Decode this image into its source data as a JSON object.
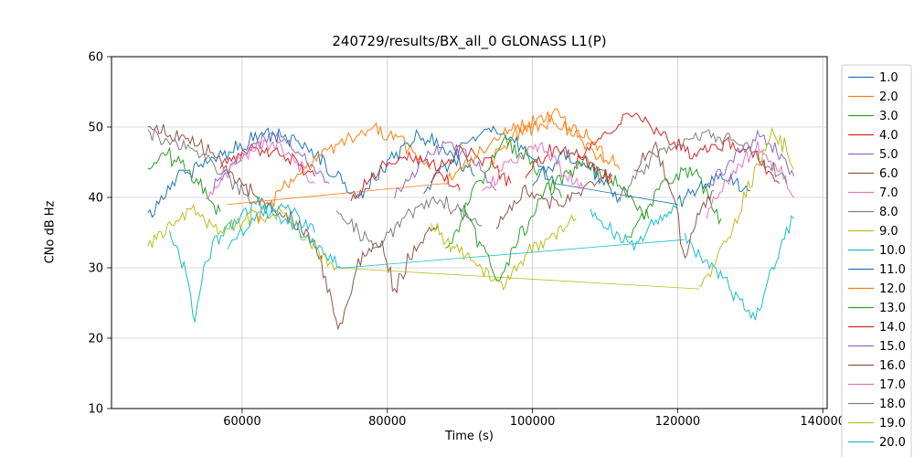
{
  "chart_data": {
    "type": "line",
    "title": "240729/results/BX_all_0 GLONASS L1(P)",
    "xlabel": "Time (s)",
    "ylabel": "CNo dB Hz",
    "xlim": [
      42000,
      140600
    ],
    "ylim": [
      10,
      60
    ],
    "xticks": [
      60000,
      80000,
      100000,
      120000,
      140000
    ],
    "yticks": [
      10,
      20,
      30,
      40,
      50,
      60
    ],
    "grid": true,
    "grid_color": "#cccccc",
    "spine_color": "#000000",
    "legend_position": "right-outside",
    "legend_border_color": "#cccccc",
    "series": [
      {
        "name": "1.0",
        "color": "#1f77b4",
        "noise": 1.3,
        "segments": [
          [
            [
              47000,
              37
            ],
            [
              51000,
              43
            ],
            [
              57000,
              46
            ],
            [
              63000,
              49
            ],
            [
              68000,
              48
            ],
            [
              72000,
              44
            ],
            [
              76000,
              40
            ]
          ],
          [
            [
              85000,
              41
            ],
            [
              90000,
              47
            ],
            [
              94000,
              50
            ],
            [
              99000,
              47
            ],
            [
              103000,
              42
            ]
          ],
          [
            [
              103000,
              42
            ],
            [
              120000,
              39
            ]
          ],
          [
            [
              120000,
              39
            ],
            [
              125000,
              43
            ],
            [
              130000,
              41
            ]
          ]
        ]
      },
      {
        "name": "2.0",
        "color": "#ff7f0e",
        "noise": 1.4,
        "segments": [
          [
            [
              62000,
              37
            ],
            [
              67000,
              43
            ],
            [
              72000,
              47
            ],
            [
              77000,
              50
            ],
            [
              82000,
              48
            ],
            [
              86000,
              44
            ]
          ],
          [
            [
              94000,
              45
            ],
            [
              98000,
              49
            ],
            [
              102000,
              51
            ],
            [
              106000,
              49
            ],
            [
              110000,
              45
            ]
          ]
        ]
      },
      {
        "name": "3.0",
        "color": "#2ca02c",
        "noise": 1.4,
        "segments": [
          [
            [
              47000,
              44
            ],
            [
              50000,
              46
            ],
            [
              54000,
              42
            ],
            [
              57000,
              38
            ]
          ],
          [
            [
              88000,
              32
            ],
            [
              92000,
              41
            ],
            [
              96000,
              48
            ],
            [
              100000,
              45
            ],
            [
              104000,
              40
            ]
          ],
          [
            [
              113000,
              34
            ],
            [
              118000,
              42
            ],
            [
              122000,
              44
            ],
            [
              126000,
              37
            ]
          ]
        ]
      },
      {
        "name": "4.0",
        "color": "#d62728",
        "noise": 1.3,
        "segments": [
          [
            [
              57000,
              44
            ],
            [
              61000,
              47
            ],
            [
              66000,
              46
            ],
            [
              70000,
              43
            ]
          ],
          [
            [
              86000,
              43
            ],
            [
              90000,
              47
            ],
            [
              94000,
              45
            ],
            [
              97000,
              42
            ]
          ],
          [
            [
              106000,
              45
            ],
            [
              110000,
              49
            ],
            [
              114000,
              52
            ],
            [
              118000,
              49
            ],
            [
              122000,
              46
            ],
            [
              127000,
              48
            ],
            [
              131000,
              46
            ],
            [
              134000,
              42
            ]
          ]
        ]
      },
      {
        "name": "5.0",
        "color": "#9467bd",
        "noise": 1.3,
        "segments": [
          [
            [
              56000,
              41
            ],
            [
              60000,
              46
            ],
            [
              64000,
              49
            ],
            [
              68000,
              46
            ],
            [
              72000,
              42
            ]
          ],
          [
            [
              124000,
              41
            ],
            [
              128000,
              46
            ],
            [
              131000,
              49
            ],
            [
              134000,
              46
            ],
            [
              136000,
              43
            ]
          ]
        ]
      },
      {
        "name": "6.0",
        "color": "#8c564b",
        "noise": 1.5,
        "segments": [
          [
            [
              47000,
              50
            ],
            [
              51000,
              49
            ],
            [
              55000,
              47
            ],
            [
              59000,
              43
            ],
            [
              63000,
              39
            ],
            [
              67000,
              37
            ],
            [
              70000,
              34
            ]
          ],
          [
            [
              70000,
              34
            ],
            [
              73500,
              21
            ],
            [
              76000,
              31
            ],
            [
              79000,
              34
            ],
            [
              81000,
              27
            ],
            [
              84000,
              33
            ],
            [
              87000,
              36
            ]
          ]
        ]
      },
      {
        "name": "7.0",
        "color": "#e377c2",
        "noise": 1.3,
        "segments": [
          [
            [
              55000,
              40
            ],
            [
              59000,
              45
            ],
            [
              63000,
              48
            ],
            [
              67000,
              46
            ],
            [
              70000,
              42
            ]
          ],
          [
            [
              124000,
              38
            ],
            [
              128000,
              44
            ],
            [
              131000,
              47
            ],
            [
              134000,
              44
            ],
            [
              136000,
              40
            ]
          ]
        ]
      },
      {
        "name": "8.0",
        "color": "#7f7f7f",
        "noise": 1.4,
        "segments": [
          [
            [
              47000,
              49
            ],
            [
              51000,
              48
            ],
            [
              55000,
              46
            ],
            [
              59000,
              42
            ],
            [
              62000,
              39
            ]
          ],
          [
            [
              112000,
              40
            ],
            [
              116000,
              45
            ],
            [
              120000,
              48
            ],
            [
              124000,
              49
            ],
            [
              128000,
              48
            ],
            [
              132000,
              45
            ],
            [
              135000,
              42
            ]
          ]
        ]
      },
      {
        "name": "9.0",
        "color": "#bcbd22",
        "noise": 1.5,
        "segments": [
          [
            [
              47000,
              33
            ],
            [
              50000,
              36
            ],
            [
              53000,
              38
            ],
            [
              57000,
              35
            ],
            [
              61000,
              37
            ],
            [
              65000,
              38
            ],
            [
              69000,
              34
            ],
            [
              73000,
              30
            ]
          ],
          [
            [
              73000,
              30
            ],
            [
              123000,
              27
            ]
          ],
          [
            [
              123000,
              27
            ],
            [
              127000,
              34
            ],
            [
              130000,
              42
            ],
            [
              133000,
              49
            ],
            [
              135000,
              47
            ],
            [
              136000,
              44
            ]
          ]
        ]
      },
      {
        "name": "10.0",
        "color": "#17becf",
        "noise": 1.5,
        "segments": [
          [
            [
              50000,
              36
            ],
            [
              52000,
              30
            ],
            [
              53500,
              23
            ],
            [
              55000,
              31
            ],
            [
              58000,
              36
            ],
            [
              62000,
              39
            ],
            [
              66000,
              37
            ],
            [
              70000,
              33
            ],
            [
              74000,
              30
            ]
          ],
          [
            [
              74000,
              30
            ],
            [
              121000,
              34
            ]
          ],
          [
            [
              121000,
              34
            ],
            [
              125000,
              30
            ],
            [
              128000,
              26
            ],
            [
              131000,
              23
            ],
            [
              133000,
              30
            ],
            [
              135000,
              35
            ],
            [
              136000,
              37
            ]
          ]
        ]
      },
      {
        "name": "11.0",
        "color": "#1f77b4",
        "noise": 1.4,
        "segments": [
          [
            [
              76000,
              40
            ],
            [
              80000,
              45
            ],
            [
              84000,
              49
            ],
            [
              88000,
              47
            ],
            [
              92000,
              43
            ]
          ],
          [
            [
              100000,
              42
            ],
            [
              104000,
              46
            ],
            [
              108000,
              44
            ],
            [
              112000,
              40
            ]
          ]
        ]
      },
      {
        "name": "12.0",
        "color": "#ff7f0e",
        "noise": 1.4,
        "segments": [
          [
            [
              58000,
              39
            ],
            [
              88000,
              42
            ]
          ],
          [
            [
              88000,
              42
            ],
            [
              93000,
              47
            ],
            [
              98000,
              50
            ],
            [
              103000,
              52
            ],
            [
              108000,
              48
            ],
            [
              112000,
              44
            ]
          ]
        ]
      },
      {
        "name": "13.0",
        "color": "#2ca02c",
        "noise": 1.4,
        "segments": [
          [
            [
              90000,
              39
            ],
            [
              93000,
              33
            ],
            [
              95500,
              28
            ],
            [
              98000,
              34
            ],
            [
              102000,
              41
            ],
            [
              107000,
              45
            ],
            [
              112000,
              42
            ],
            [
              116000,
              37
            ]
          ]
        ]
      },
      {
        "name": "14.0",
        "color": "#d62728",
        "noise": 1.3,
        "segments": [
          [
            [
              75000,
              40
            ],
            [
              79000,
              44
            ],
            [
              83000,
              46
            ],
            [
              87000,
              44
            ],
            [
              90000,
              41
            ]
          ],
          [
            [
              99000,
              43
            ],
            [
              103000,
              47
            ],
            [
              107000,
              46
            ],
            [
              111000,
              42
            ]
          ]
        ]
      },
      {
        "name": "15.0",
        "color": "#9467bd",
        "noise": 1.3,
        "segments": [
          [
            [
              81000,
              40
            ],
            [
              85000,
              45
            ],
            [
              88000,
              48
            ],
            [
              92000,
              45
            ],
            [
              95000,
              41
            ]
          ]
        ]
      },
      {
        "name": "16.0",
        "color": "#8c564b",
        "noise": 1.4,
        "segments": [
          [
            [
              95000,
              36
            ],
            [
              99000,
              41
            ],
            [
              103000,
              39
            ],
            [
              107000,
              41
            ],
            [
              111000,
              43
            ]
          ],
          [
            [
              114000,
              44
            ],
            [
              117000,
              47
            ],
            [
              119500,
              40
            ],
            [
              121000,
              31
            ],
            [
              123000,
              38
            ],
            [
              125000,
              41
            ]
          ]
        ]
      },
      {
        "name": "17.0",
        "color": "#e377c2",
        "noise": 1.3,
        "segments": [
          [
            [
              93000,
              41
            ],
            [
              97000,
              45
            ],
            [
              101000,
              47
            ],
            [
              104000,
              44
            ],
            [
              107000,
              41
            ]
          ]
        ]
      },
      {
        "name": "18.0",
        "color": "#7f7f7f",
        "noise": 1.4,
        "segments": [
          [
            [
              73000,
              38
            ],
            [
              76000,
              35
            ],
            [
              79000,
              33
            ],
            [
              82000,
              37
            ],
            [
              86000,
              40
            ],
            [
              90000,
              38
            ],
            [
              93000,
              36
            ]
          ]
        ]
      },
      {
        "name": "19.0",
        "color": "#bcbd22",
        "noise": 1.4,
        "segments": [
          [
            [
              86000,
              36
            ],
            [
              89000,
              33
            ],
            [
              93000,
              30
            ],
            [
              96000,
              27
            ],
            [
              99000,
              32
            ],
            [
              103000,
              35
            ],
            [
              106000,
              37
            ]
          ]
        ]
      },
      {
        "name": "20.0",
        "color": "#17becf",
        "noise": 1.3,
        "segments": [
          [
            [
              58000,
              33
            ],
            [
              62000,
              37
            ],
            [
              66000,
              39
            ],
            [
              70000,
              35
            ]
          ],
          [
            [
              108000,
              38
            ],
            [
              111000,
              35
            ],
            [
              114000,
              33
            ],
            [
              117000,
              37
            ],
            [
              120000,
              39
            ]
          ]
        ]
      }
    ]
  }
}
